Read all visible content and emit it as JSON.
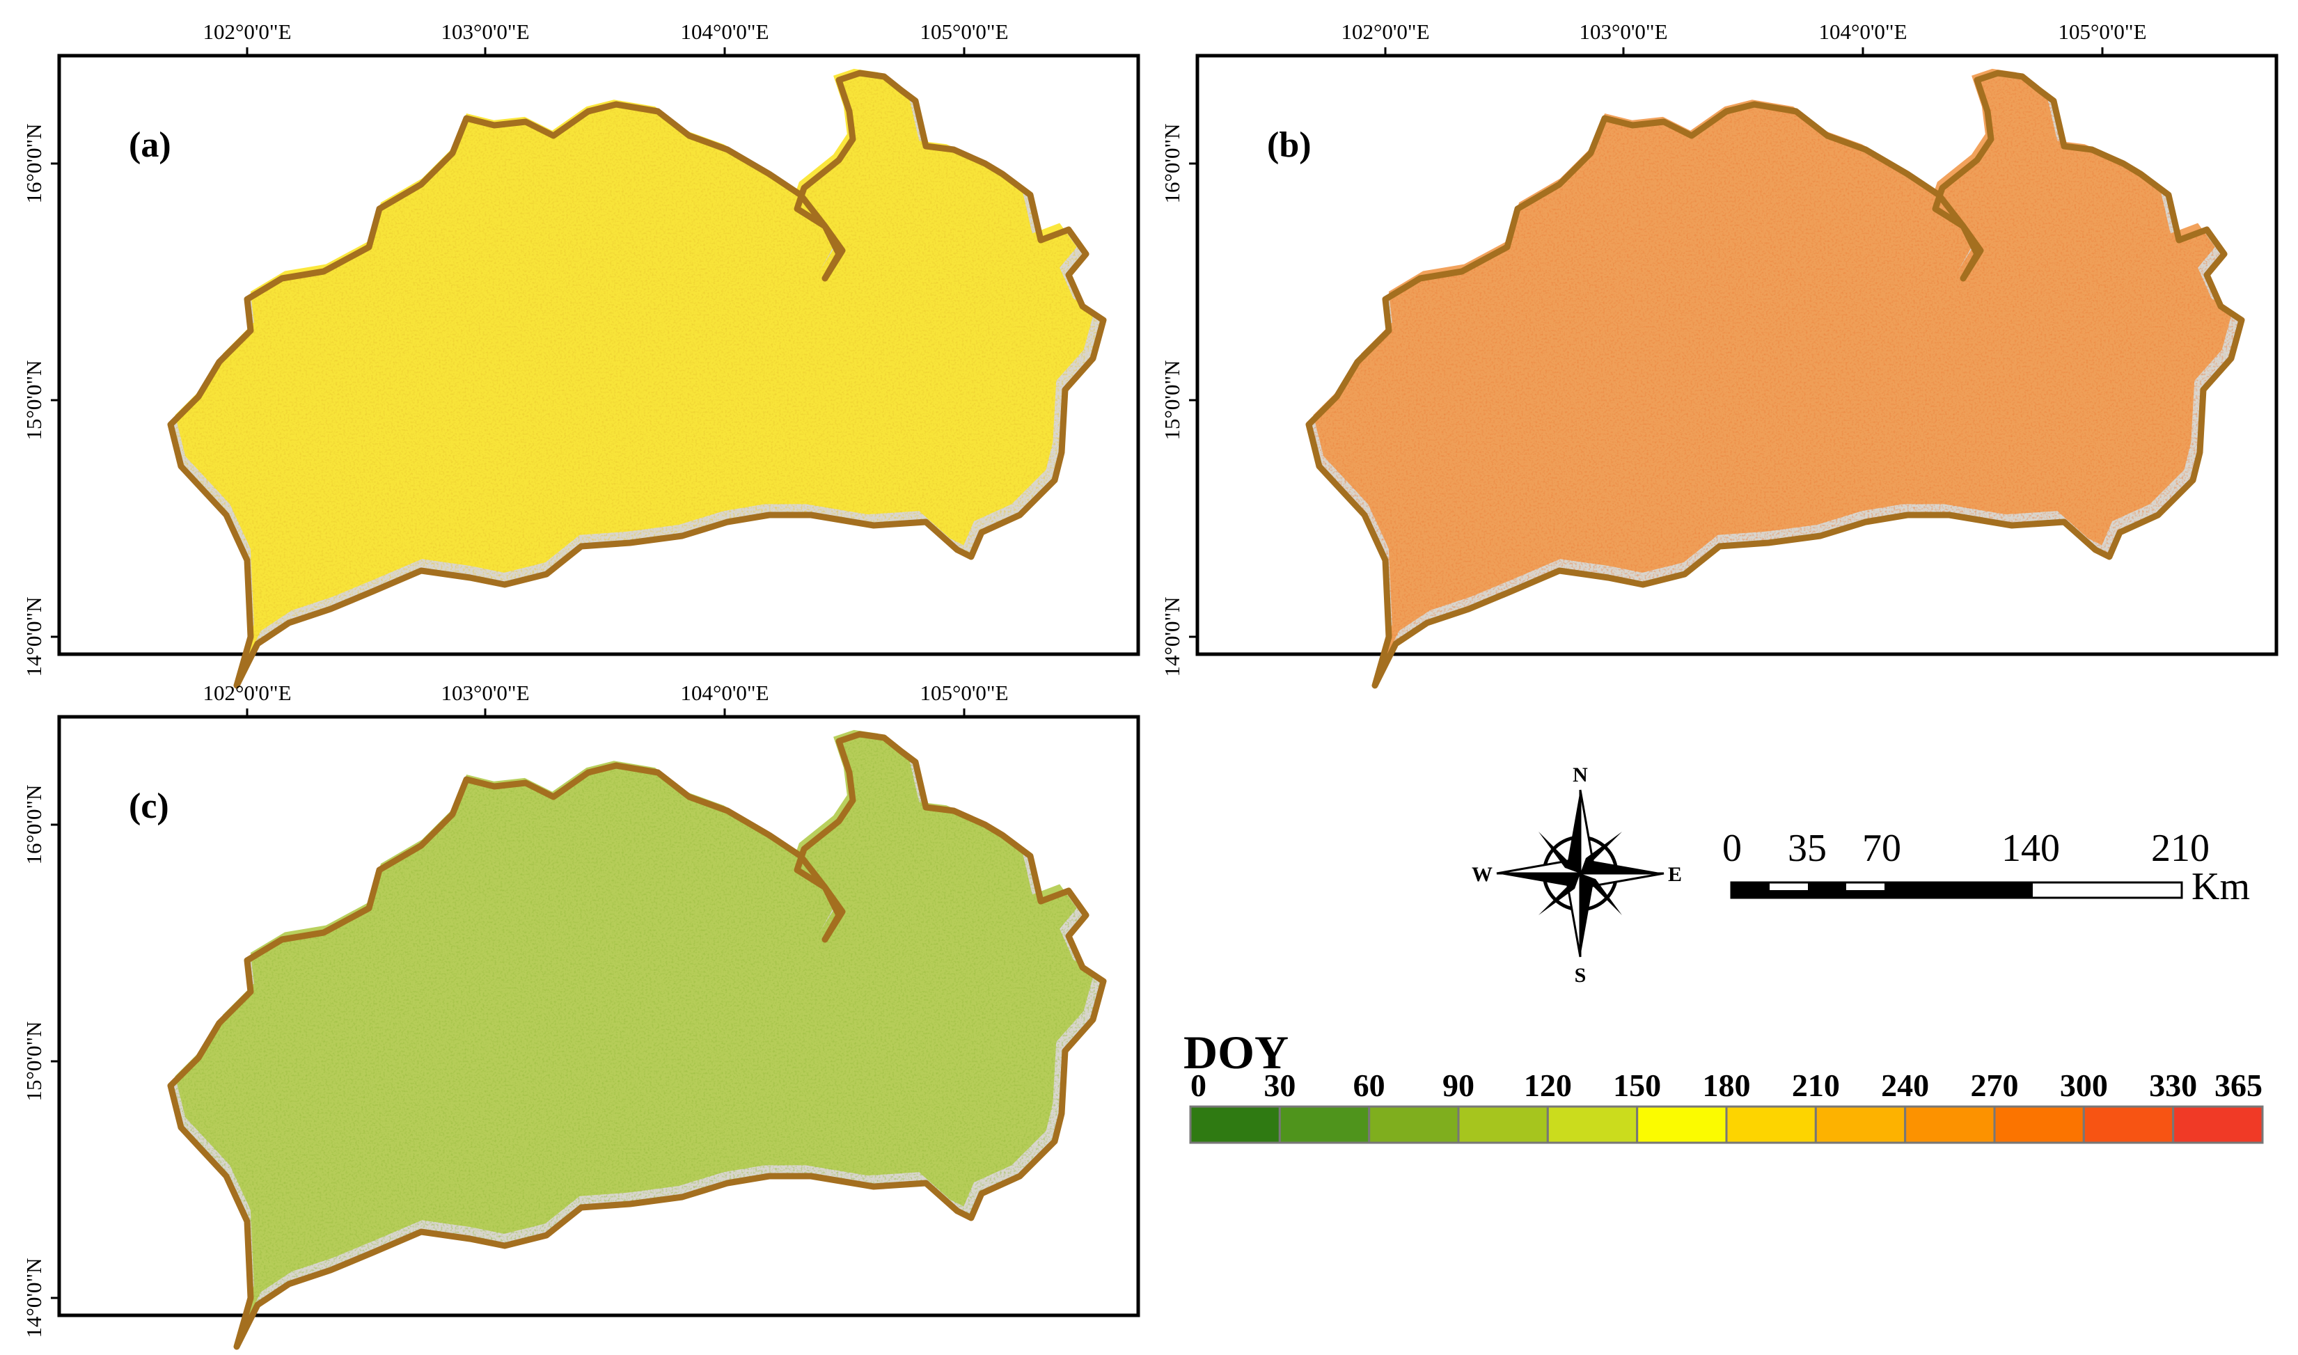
{
  "panels": [
    {
      "id": "a",
      "label": "(a)",
      "fill": "#fbe52c",
      "fill_dark": "#e9c62e",
      "x_ticks": [
        "102°0'0\"E",
        "103°0'0\"E",
        "104°0'0\"E",
        "105°0'0\"E"
      ],
      "y_ticks": [
        "16°0'0\"N",
        "15°0'0\"N",
        "14°0'0\"N"
      ]
    },
    {
      "id": "b",
      "label": "(b)",
      "fill": "#f19a4e",
      "fill_dark": "#ec7f3a",
      "x_ticks": [
        "102°0'0\"E",
        "103°0'0\"E",
        "104°0'0\"E",
        "105°0'0\"E"
      ],
      "y_ticks": [
        "16°0'0\"N",
        "15°0'0\"N",
        "14°0'0\"N"
      ]
    },
    {
      "id": "c",
      "label": "(c)",
      "fill": "#b3cc4f",
      "fill_dark": "#96bb3b",
      "x_ticks": [
        "102°0'0\"E",
        "103°0'0\"E",
        "104°0'0\"E",
        "105°0'0\"E"
      ],
      "y_ticks": [
        "16°0'0\"N",
        "15°0'0\"N",
        "14°0'0\"N"
      ]
    }
  ],
  "boundary_color": "#a46f1f",
  "background_gray": "#d9d6cf",
  "north_arrow": {
    "n": "N",
    "s": "S",
    "e": "E",
    "w": "W"
  },
  "scale_bar": {
    "labels": [
      "0",
      "35",
      "70",
      "140",
      "210"
    ],
    "unit": "Km"
  },
  "legend": {
    "title": "DOY",
    "values": [
      "0",
      "30",
      "60",
      "90",
      "120",
      "150",
      "180",
      "210",
      "240",
      "270",
      "300",
      "330",
      "365"
    ],
    "colors": [
      "#2f7a12",
      "#4f941c",
      "#7fae1e",
      "#a6c51e",
      "#cbdc1d",
      "#fbfb00",
      "#fdd400",
      "#fdb200",
      "#fc9200",
      "#fb7400",
      "#f75413",
      "#f03a26"
    ]
  }
}
